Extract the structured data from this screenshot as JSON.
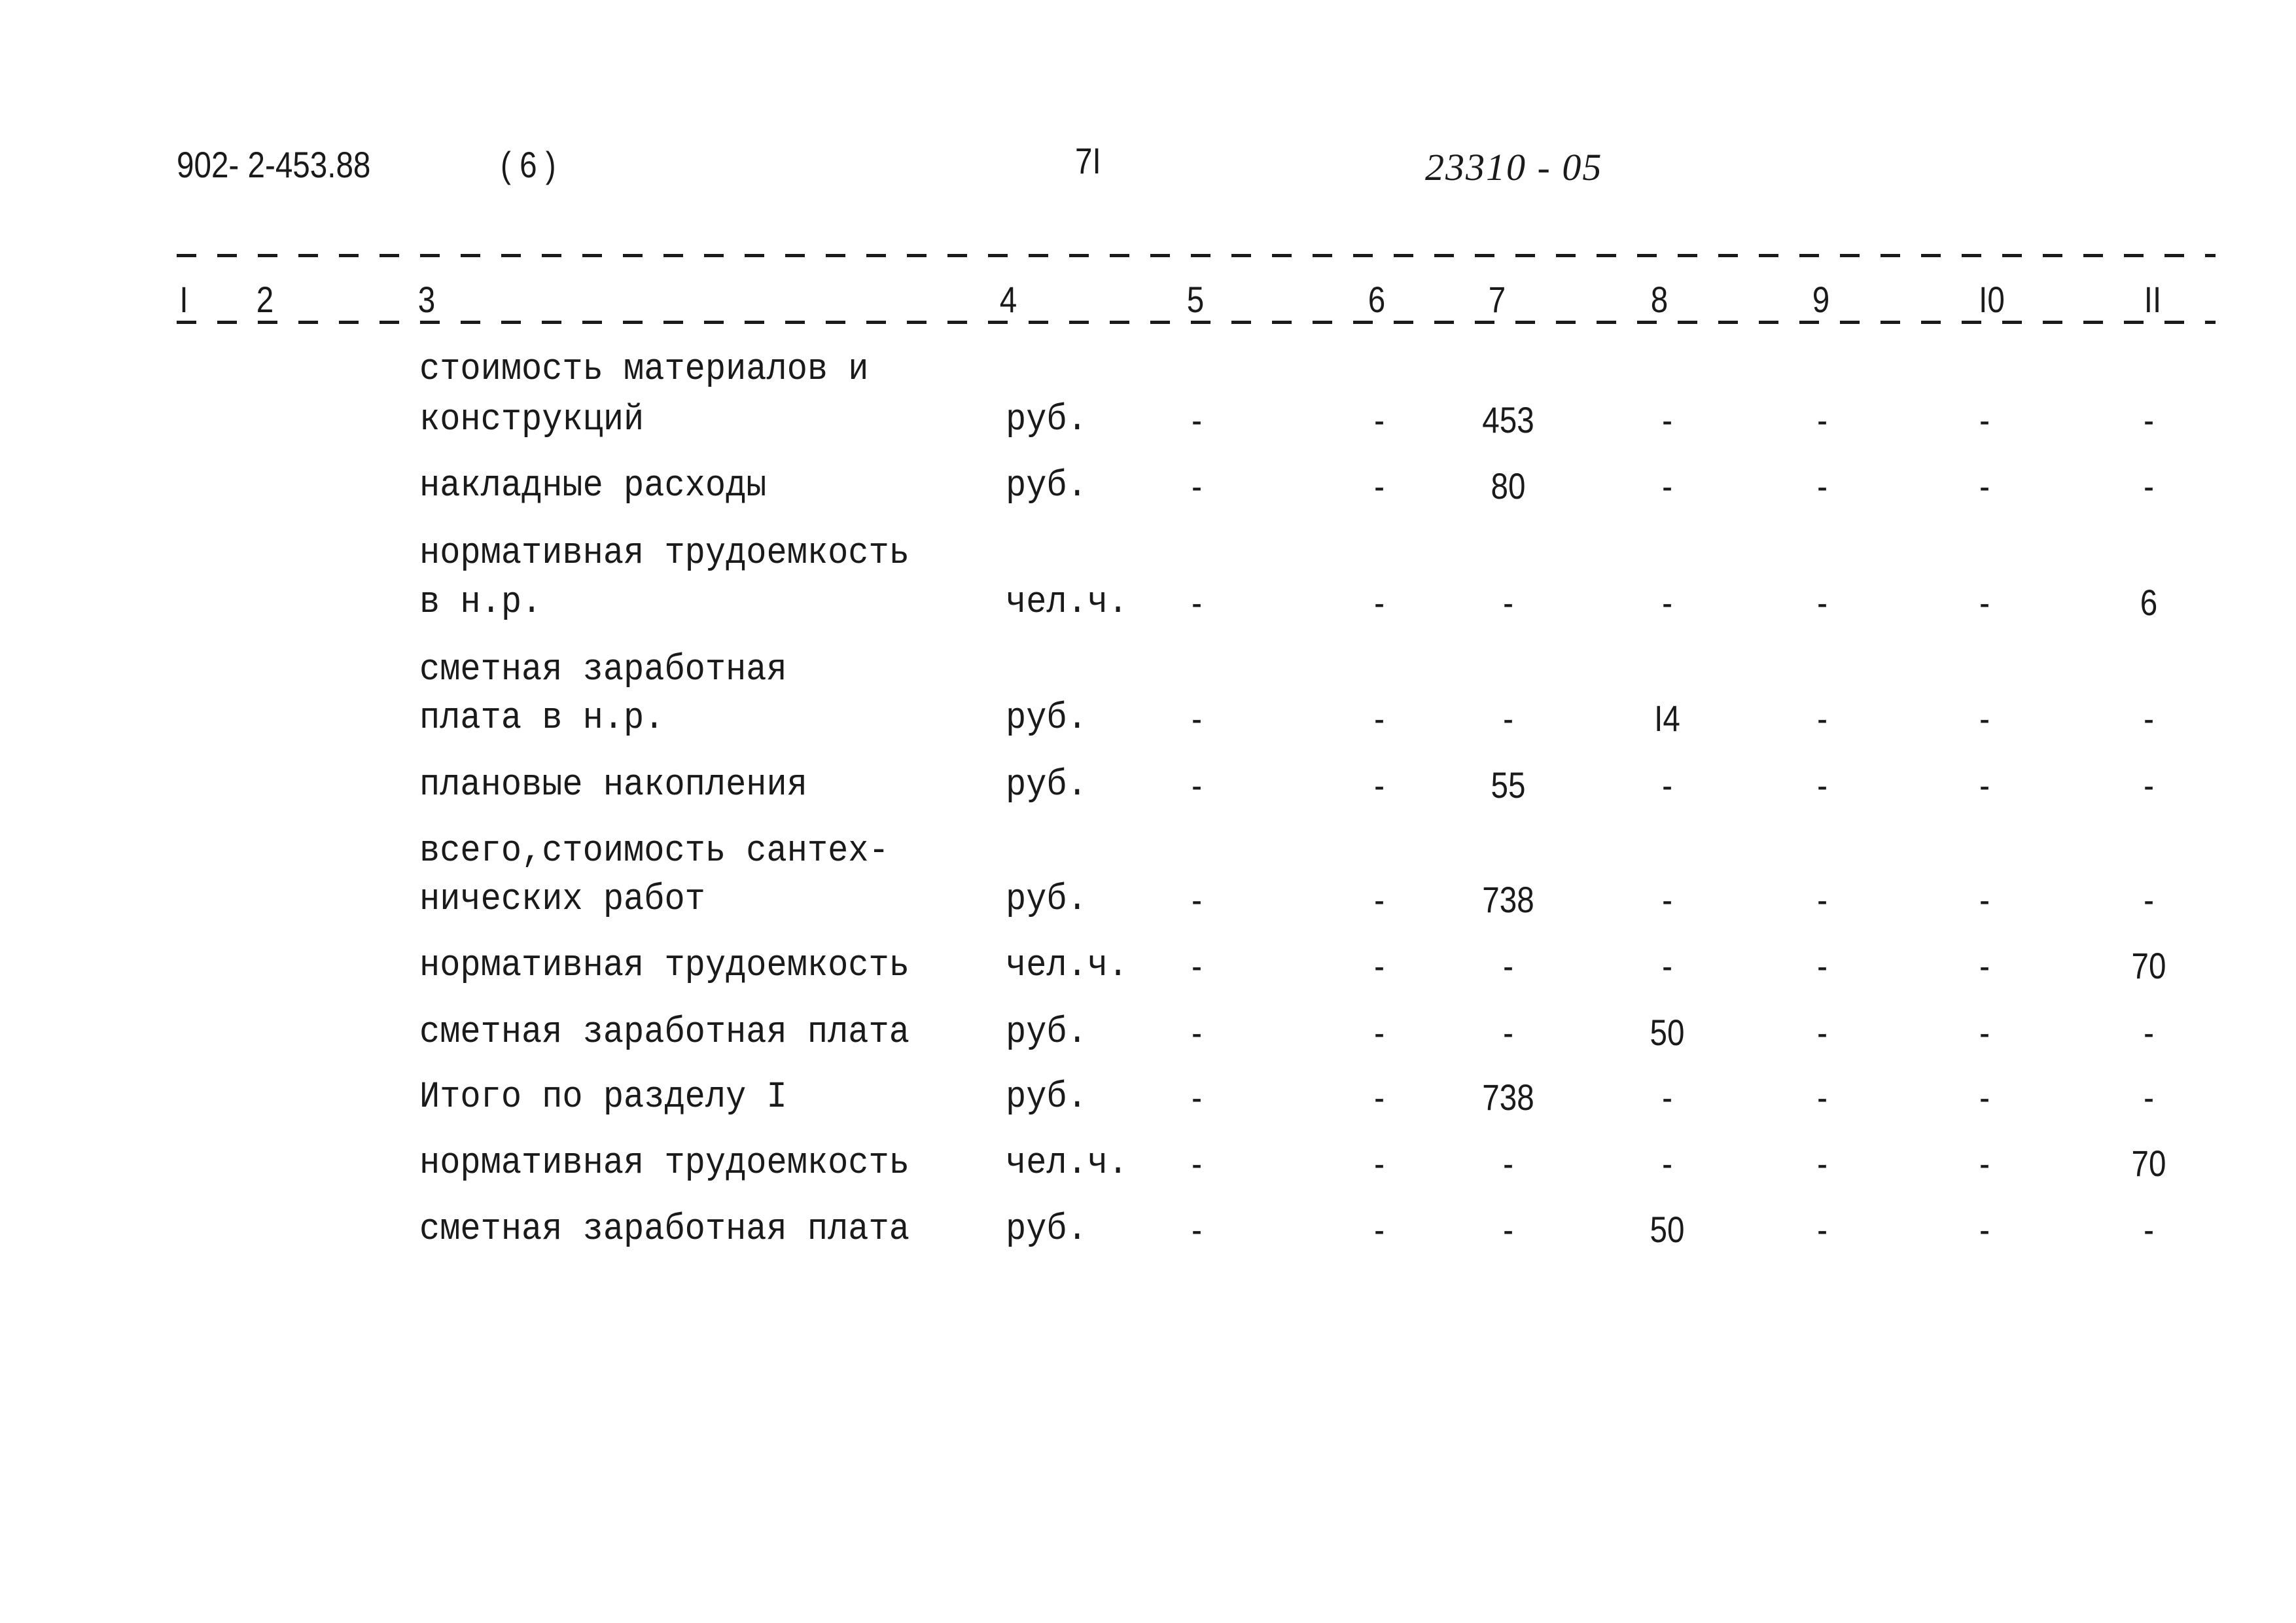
{
  "header": {
    "doc_code": "902- 2-453.88",
    "album": "( 6 )",
    "page_number": "7I",
    "inventory_number": "23310 - 05"
  },
  "columns": [
    "I",
    "2",
    "3",
    "4",
    "5",
    "6",
    "7",
    "8",
    "9",
    "I0",
    "II"
  ],
  "rows": [
    {
      "label": [
        "стоимость материалов и",
        "конструкций"
      ],
      "unit": "руб.",
      "values": [
        "-",
        "-",
        "453",
        "-",
        "-",
        "-",
        "-"
      ]
    },
    {
      "label": [
        "накладные расходы"
      ],
      "unit": "руб.",
      "values": [
        "-",
        "-",
        "80",
        "-",
        "-",
        "-",
        "-"
      ]
    },
    {
      "label": [
        "нормативная трудоемкость",
        "в н.р."
      ],
      "unit": "чел.ч.",
      "values": [
        "-",
        "-",
        "-",
        "-",
        "-",
        "-",
        "6"
      ]
    },
    {
      "label": [
        "сметная заработная",
        "плата в н.р."
      ],
      "unit": "руб.",
      "values": [
        "-",
        "-",
        "-",
        "I4",
        "-",
        "-",
        "-"
      ]
    },
    {
      "label": [
        "плановые накопления"
      ],
      "unit": "руб.",
      "values": [
        "-",
        "-",
        "55",
        "-",
        "-",
        "-",
        "-"
      ]
    },
    {
      "label": [
        "всего,стоимость сантех-",
        "нических работ"
      ],
      "unit": "руб.",
      "values": [
        "-",
        "-",
        "738",
        "-",
        "-",
        "-",
        "-"
      ]
    },
    {
      "label": [
        "нормативная трудоемкость"
      ],
      "unit": "чел.ч.",
      "values": [
        "-",
        "-",
        "-",
        "-",
        "-",
        "-",
        "70"
      ]
    },
    {
      "label": [
        "сметная заработная плата"
      ],
      "unit": "руб.",
      "values": [
        "-",
        "-",
        "-",
        "50",
        "-",
        "-",
        "-"
      ]
    },
    {
      "label": [
        "Итого по разделу I"
      ],
      "unit": "руб.",
      "values": [
        "-",
        "-",
        "738",
        "-",
        "-",
        "-",
        "-"
      ]
    },
    {
      "label": [
        "нормативная трудоемкость"
      ],
      "unit": "чел.ч.",
      "values": [
        "-",
        "-",
        "-",
        "-",
        "-",
        "-",
        "70"
      ]
    },
    {
      "label": [
        "сметная заработная плата"
      ],
      "unit": "руб.",
      "values": [
        "-",
        "-",
        "-",
        "50",
        "-",
        "-",
        "-"
      ]
    }
  ]
}
